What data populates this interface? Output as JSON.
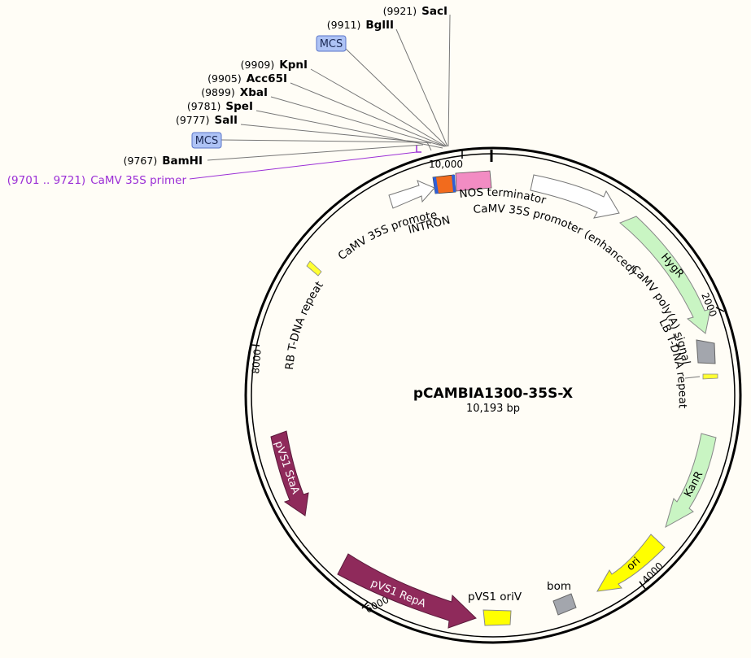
{
  "plasmid": {
    "name": "pCAMBIA1300-35S-X",
    "size_label": "10,193 bp"
  },
  "sites": [
    {
      "pos": "(9921)",
      "name": "SacI"
    },
    {
      "pos": "(9911)",
      "name": "BglII"
    },
    {
      "pos": "(9909)",
      "name": "KpnI"
    },
    {
      "pos": "(9905)",
      "name": "Acc65I"
    },
    {
      "pos": "(9899)",
      "name": "XbaI"
    },
    {
      "pos": "(9781)",
      "name": "SpeI"
    },
    {
      "pos": "(9777)",
      "name": "SalI"
    },
    {
      "pos": "(9767)",
      "name": "BamHI"
    }
  ],
  "mcs_label": "MCS",
  "primer": {
    "range": "(9701 .. 9721)",
    "name": "CaMV 35S primer"
  },
  "ticks": [
    "10,000",
    "2000",
    "4000",
    "6000",
    "8000"
  ],
  "features": {
    "camv35s_promoter": "CaMV 35S promoter",
    "intron": "INTRON",
    "nos_terminator": "NOS terminator",
    "camv35s_enhanced": "CaMV 35S promoter (enhanced)",
    "hygr": "HygR",
    "camv_polya": "CaMV poly(A) signal",
    "lb_repeat": "LB T-DNA repeat",
    "kanr": "KanR",
    "ori": "ori",
    "bom": "bom",
    "pvs1_oriv": "pVS1 oriV",
    "pvs1_repa": "pVS1 RepA",
    "pvs1_staa": "pVS1 StaA",
    "rb_repeat": "RB T-DNA repeat"
  },
  "colors": {
    "hygr": "#c9f5c3",
    "kanr": "#c9f5c3",
    "ori": "#ffff00",
    "pvs1": "#8f2a5b",
    "intron": "#f26b1d",
    "nos": "#f28cc3",
    "grey": "#a3a6ad",
    "primer": "#9b2fd6",
    "mcs_fill": "#aec3f5"
  }
}
